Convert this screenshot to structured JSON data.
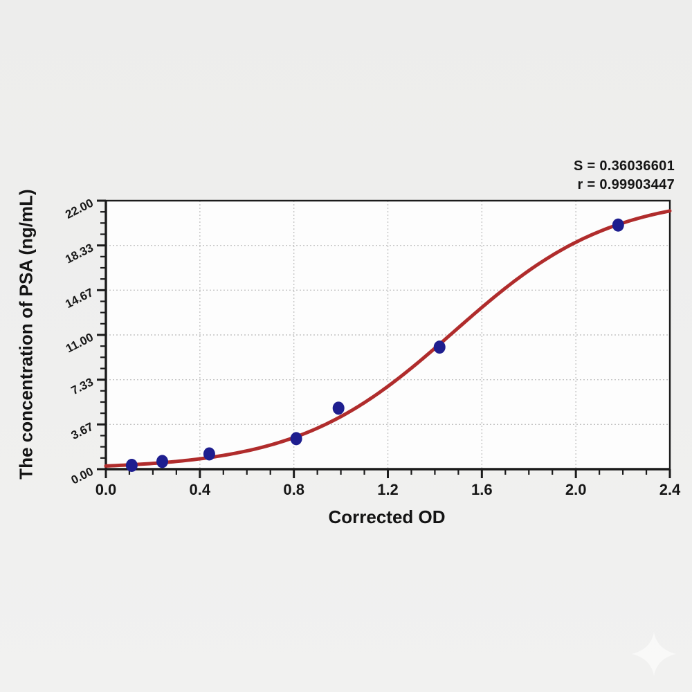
{
  "annotation": {
    "s": "S = 0.36036601",
    "r": "r = 0.99903447"
  },
  "chart_data": {
    "type": "scatter",
    "title": "",
    "xlabel": "Corrected OD",
    "ylabel": "The concentration of PSA (ng/mL)",
    "xlim": [
      0,
      2.4
    ],
    "ylim": [
      0,
      22
    ],
    "x_tick_values": [
      0,
      0.4,
      0.8,
      1.2,
      1.6,
      2.0,
      2.4
    ],
    "x_tick_labels": [
      "0.0",
      "0.4",
      "0.8",
      "1.2",
      "1.6",
      "2.0",
      "2.4"
    ],
    "y_tick_values": [
      0,
      3.6667,
      7.3333,
      11,
      14.6667,
      18.3333,
      22
    ],
    "y_tick_labels": [
      "0.00",
      "3.67",
      "7.33",
      "11.00",
      "14.67",
      "18.33",
      "22.00"
    ],
    "x_minor_per_major": 4,
    "y_minor_per_major": 4,
    "grid": "dotted",
    "legend": "none",
    "points": {
      "x": [
        0.11,
        0.24,
        0.44,
        0.81,
        0.99,
        1.42,
        2.18
      ],
      "y": [
        0.31,
        0.63,
        1.25,
        2.5,
        5.0,
        10.0,
        20.0
      ]
    },
    "fit_curve": {
      "type": "logistic",
      "L": 22.5,
      "k": 3.0,
      "x0": 1.48
    },
    "stats": {
      "S": "0.36036601",
      "r": "0.99903447"
    },
    "colors": {
      "curve": "#b02c2c",
      "points": "#1e1e8f",
      "grid": "#c4c4c4",
      "axis": "#1b1b1b",
      "plot_bg": "#fdfdfd"
    }
  },
  "watermark": {
    "icon": "sparkle-star-icon"
  }
}
